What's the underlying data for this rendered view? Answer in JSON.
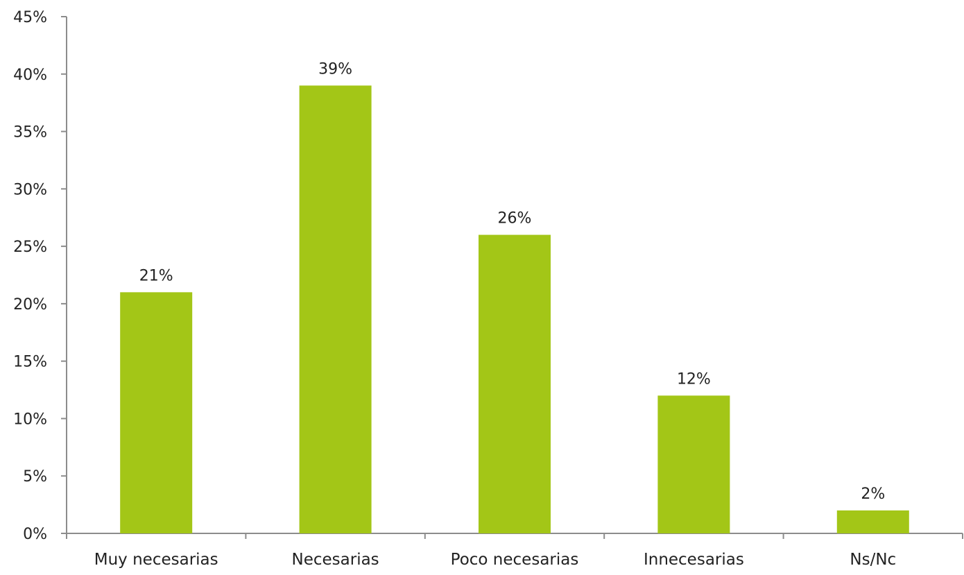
{
  "chart_data": {
    "type": "bar",
    "title": "",
    "xlabel": "",
    "ylabel": "",
    "categories": [
      "Muy necesarias",
      "Necesarias",
      "Poco necesarias",
      "Innecesarias",
      "Ns/Nc"
    ],
    "values": [
      21,
      39,
      26,
      12,
      2
    ],
    "data_labels": [
      "21%",
      "39%",
      "26%",
      "12%",
      "2%"
    ],
    "ylim": [
      0,
      45
    ],
    "y_ticks": [
      0,
      5,
      10,
      15,
      20,
      25,
      30,
      35,
      40,
      45
    ],
    "y_tick_labels": [
      "0%",
      "5%",
      "10%",
      "15%",
      "20%",
      "25%",
      "30%",
      "35%",
      "40%",
      "45%"
    ],
    "grid": false,
    "legend": "none",
    "bar_color": "#a3c617",
    "axis_color": "#8c8c8c"
  }
}
